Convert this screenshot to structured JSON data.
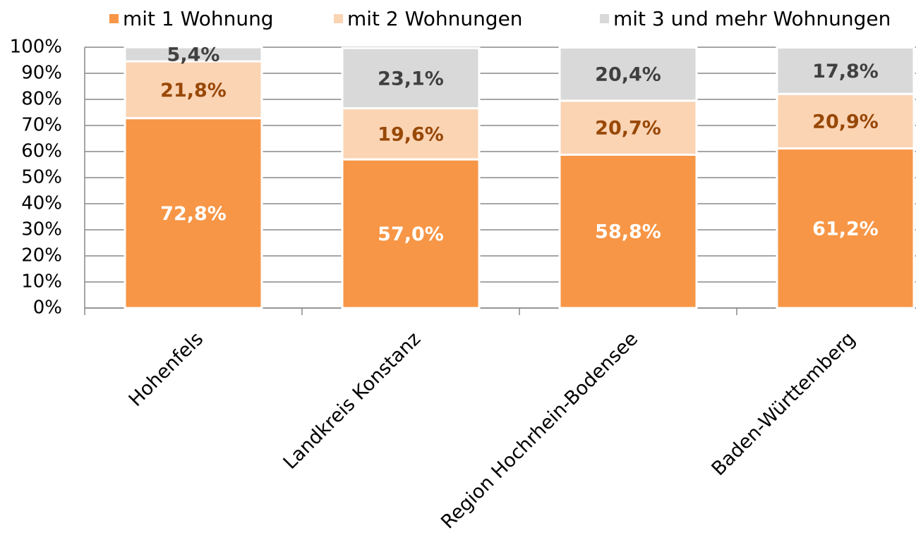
{
  "chart_data": {
    "type": "stacked-bar",
    "categories": [
      "Hohenfels",
      "Landkreis Konstanz",
      "Region Hochrhein-Bodensee",
      "Baden-Württemberg"
    ],
    "series": [
      {
        "name": "mit 1 Wohnung",
        "color": "#f79646",
        "label_color": "#ffffff",
        "values": [
          72.8,
          57.0,
          58.8,
          61.2
        ],
        "value_labels": [
          "72,8%",
          "57,0%",
          "58,8%",
          "61,2%"
        ]
      },
      {
        "name": "mit 2 Wohnungen",
        "color": "#fbd4b4",
        "label_color": "#984807",
        "values": [
          21.8,
          19.6,
          20.7,
          20.9
        ],
        "value_labels": [
          "21,8%",
          "19,6%",
          "20,7%",
          "20,9%"
        ]
      },
      {
        "name": "mit 3 und mehr Wohnungen",
        "color": "#d9d9d9",
        "label_color": "#404040",
        "values": [
          5.4,
          23.1,
          20.4,
          17.8
        ],
        "value_labels": [
          "5,4%",
          "23,1%",
          "20,4%",
          "17,8%"
        ]
      }
    ],
    "ylim": [
      0,
      100
    ],
    "yticks": [
      {
        "value": 0,
        "label": "0%"
      },
      {
        "value": 10,
        "label": "10%"
      },
      {
        "value": 20,
        "label": "20%"
      },
      {
        "value": 30,
        "label": "30%"
      },
      {
        "value": 40,
        "label": "40%"
      },
      {
        "value": 50,
        "label": "50%"
      },
      {
        "value": 60,
        "label": "60%"
      },
      {
        "value": 70,
        "label": "70%"
      },
      {
        "value": 80,
        "label": "80%"
      },
      {
        "value": 90,
        "label": "90%"
      },
      {
        "value": 100,
        "label": "100%"
      }
    ],
    "grid": true,
    "legend": "top"
  }
}
